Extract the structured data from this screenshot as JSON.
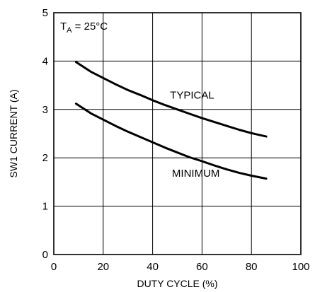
{
  "chart_data": {
    "type": "line",
    "xlabel": "DUTY CYCLE (%)",
    "ylabel": "SW1 CURRENT (A)",
    "xlim": [
      0,
      100
    ],
    "ylim": [
      0,
      5
    ],
    "x_ticks": [
      0,
      20,
      40,
      60,
      80,
      100
    ],
    "y_ticks": [
      0,
      1,
      2,
      3,
      4,
      5
    ],
    "grid": true,
    "condition": {
      "prefix": "T",
      "subscript": "A",
      "suffix": " = 25°C"
    },
    "series": [
      {
        "name": "TYPICAL",
        "x": [
          9,
          15,
          20,
          25,
          30,
          35,
          40,
          45,
          50,
          55,
          60,
          65,
          70,
          75,
          80,
          86
        ],
        "y": [
          3.98,
          3.78,
          3.65,
          3.52,
          3.4,
          3.3,
          3.19,
          3.09,
          3.0,
          2.91,
          2.82,
          2.74,
          2.66,
          2.58,
          2.51,
          2.44
        ]
      },
      {
        "name": "MINIMUM",
        "x": [
          9,
          15,
          20,
          25,
          30,
          35,
          40,
          45,
          50,
          55,
          60,
          65,
          70,
          75,
          80,
          86
        ],
        "y": [
          3.12,
          2.92,
          2.79,
          2.66,
          2.54,
          2.43,
          2.32,
          2.21,
          2.11,
          2.01,
          1.93,
          1.84,
          1.76,
          1.69,
          1.63,
          1.57
        ]
      }
    ]
  }
}
